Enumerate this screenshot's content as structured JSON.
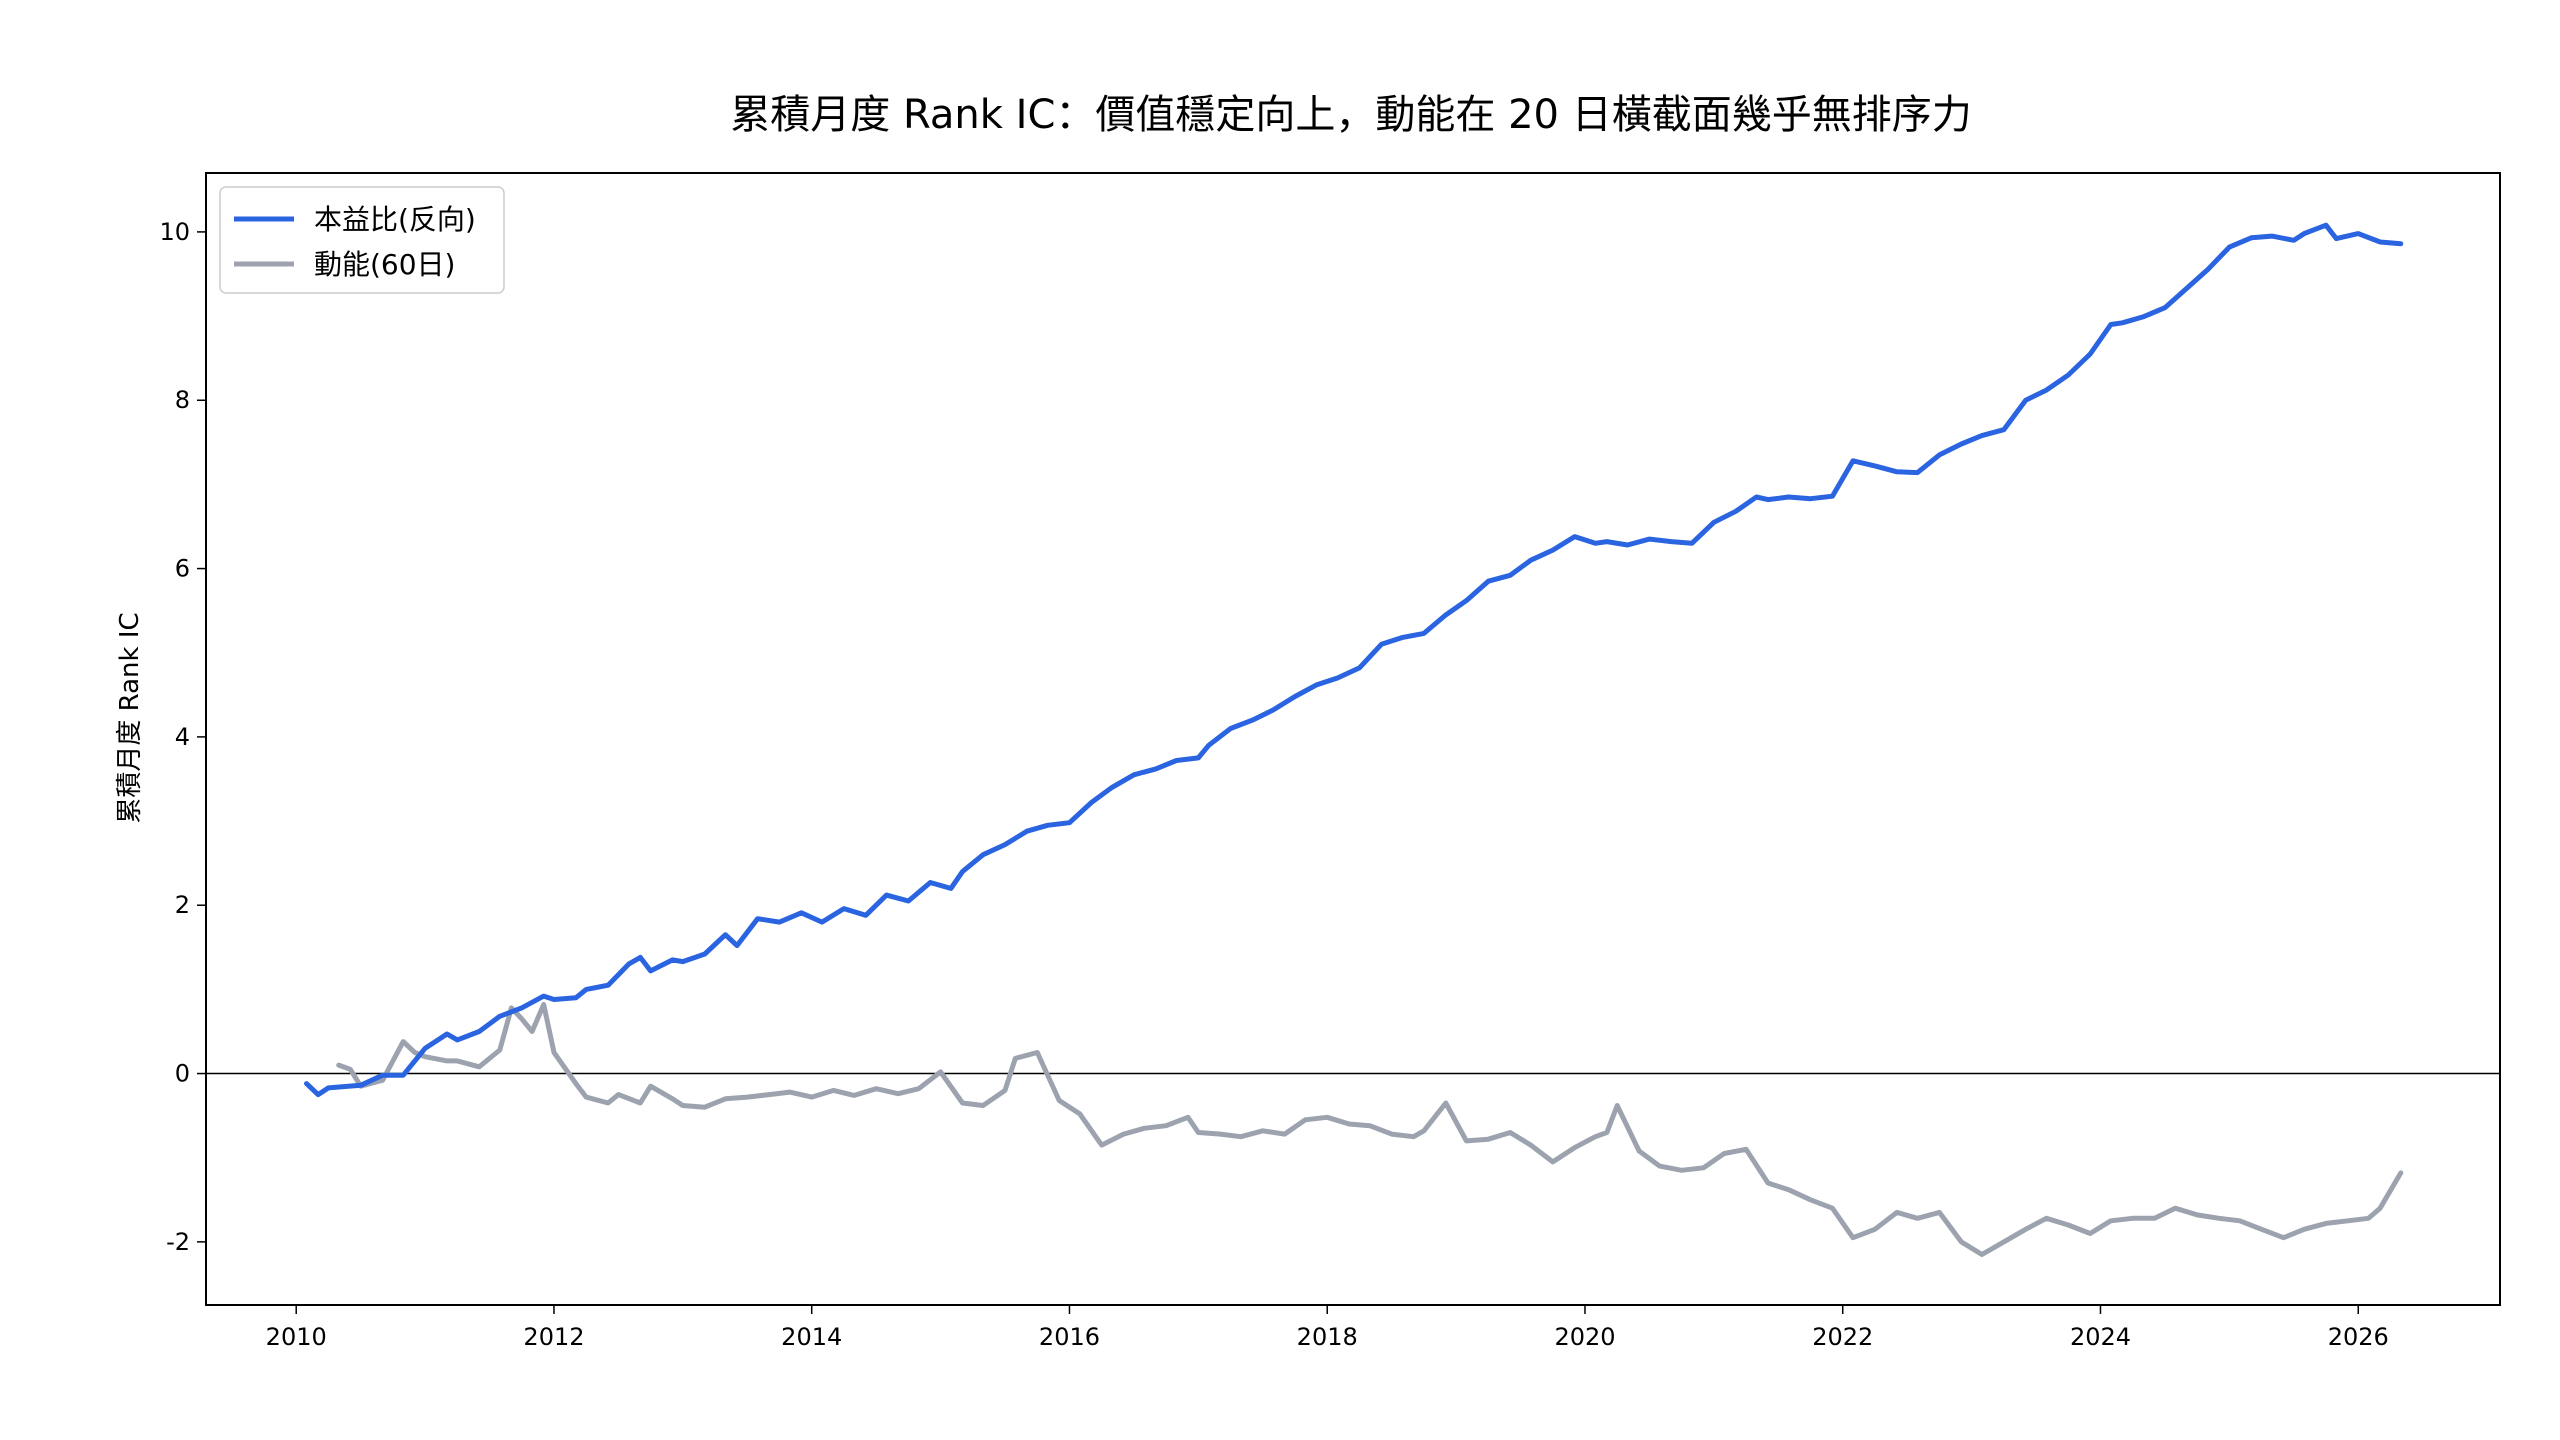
{
  "chart_data": {
    "type": "line",
    "title": "累積月度 Rank IC：價值穩定向上，動能在 20 日橫截面幾乎無排序力",
    "xlabel": "",
    "ylabel": "累積月度 Rank IC",
    "xlim": [
      2009.3,
      2027.1
    ],
    "ylim": [
      -2.75,
      10.7
    ],
    "x_ticks": [
      2010,
      2012,
      2014,
      2016,
      2018,
      2020,
      2022,
      2024,
      2026
    ],
    "x_tick_labels": [
      "2010",
      "2012",
      "2014",
      "2016",
      "2018",
      "2020",
      "2022",
      "2024",
      "2026"
    ],
    "y_ticks": [
      -2,
      0,
      2,
      4,
      6,
      8,
      10
    ],
    "y_tick_labels": [
      "-2",
      "0",
      "2",
      "4",
      "6",
      "8",
      "10"
    ],
    "zero_line": true,
    "grid": false,
    "legend_position": "top-left",
    "series": [
      {
        "name": "本益比(反向)",
        "color": "#2b64e0",
        "x": [
          2010.08,
          2010.17,
          2010.25,
          2010.5,
          2010.67,
          2010.83,
          2011.0,
          2011.17,
          2011.25,
          2011.42,
          2011.58,
          2011.75,
          2011.92,
          2012.0,
          2012.17,
          2012.25,
          2012.42,
          2012.58,
          2012.67,
          2012.75,
          2012.92,
          2013.0,
          2013.17,
          2013.33,
          2013.42,
          2013.58,
          2013.75,
          2013.92,
          2014.08,
          2014.25,
          2014.42,
          2014.58,
          2014.75,
          2014.92,
          2015.08,
          2015.17,
          2015.33,
          2015.5,
          2015.67,
          2015.83,
          2016.0,
          2016.17,
          2016.33,
          2016.5,
          2016.67,
          2016.83,
          2017.0,
          2017.08,
          2017.25,
          2017.42,
          2017.58,
          2017.75,
          2017.92,
          2018.08,
          2018.25,
          2018.42,
          2018.58,
          2018.75,
          2018.92,
          2019.08,
          2019.25,
          2019.42,
          2019.58,
          2019.75,
          2019.92,
          2020.08,
          2020.17,
          2020.33,
          2020.5,
          2020.67,
          2020.83,
          2021.0,
          2021.17,
          2021.33,
          2021.42,
          2021.58,
          2021.75,
          2021.92,
          2022.08,
          2022.25,
          2022.42,
          2022.58,
          2022.75,
          2022.92,
          2023.08,
          2023.25,
          2023.42,
          2023.58,
          2023.75,
          2023.92,
          2024.08,
          2024.17,
          2024.33,
          2024.5,
          2024.67,
          2024.83,
          2025.0,
          2025.17,
          2025.33,
          2025.5,
          2025.58,
          2025.75,
          2025.83,
          2026.0,
          2026.17,
          2026.33
        ],
        "values": [
          -0.12,
          -0.25,
          -0.17,
          -0.14,
          -0.02,
          -0.02,
          0.3,
          0.47,
          0.4,
          0.5,
          0.68,
          0.78,
          0.92,
          0.88,
          0.9,
          1.0,
          1.05,
          1.3,
          1.38,
          1.22,
          1.35,
          1.33,
          1.42,
          1.65,
          1.52,
          1.84,
          1.8,
          1.91,
          1.8,
          1.96,
          1.88,
          2.12,
          2.05,
          2.27,
          2.2,
          2.4,
          2.6,
          2.72,
          2.88,
          2.95,
          2.98,
          3.22,
          3.4,
          3.55,
          3.62,
          3.72,
          3.75,
          3.9,
          4.1,
          4.2,
          4.32,
          4.48,
          4.62,
          4.7,
          4.82,
          5.1,
          5.18,
          5.23,
          5.45,
          5.62,
          5.85,
          5.92,
          6.1,
          6.22,
          6.38,
          6.3,
          6.32,
          6.28,
          6.35,
          6.32,
          6.3,
          6.55,
          6.68,
          6.85,
          6.82,
          6.85,
          6.83,
          6.86,
          7.28,
          7.22,
          7.15,
          7.14,
          7.35,
          7.48,
          7.58,
          7.65,
          8.0,
          8.12,
          8.3,
          8.55,
          8.9,
          8.92,
          8.99,
          9.1,
          9.33,
          9.55,
          9.82,
          9.93,
          9.95,
          9.9,
          9.98,
          10.08,
          9.92,
          9.98,
          9.88,
          9.86
        ]
      },
      {
        "name": "動能(60日)",
        "color": "#9ca3af",
        "x": [
          2010.33,
          2010.42,
          2010.5,
          2010.67,
          2010.83,
          2010.92,
          2011.0,
          2011.17,
          2011.25,
          2011.42,
          2011.58,
          2011.67,
          2011.75,
          2011.83,
          2011.92,
          2012.0,
          2012.17,
          2012.25,
          2012.42,
          2012.5,
          2012.67,
          2012.75,
          2012.92,
          2013.0,
          2013.17,
          2013.33,
          2013.5,
          2013.67,
          2013.83,
          2014.0,
          2014.17,
          2014.33,
          2014.5,
          2014.67,
          2014.83,
          2015.0,
          2015.17,
          2015.33,
          2015.5,
          2015.58,
          2015.75,
          2015.92,
          2016.08,
          2016.25,
          2016.42,
          2016.58,
          2016.75,
          2016.92,
          2017.0,
          2017.17,
          2017.33,
          2017.5,
          2017.67,
          2017.83,
          2018.0,
          2018.17,
          2018.33,
          2018.5,
          2018.67,
          2018.75,
          2018.92,
          2019.08,
          2019.25,
          2019.42,
          2019.58,
          2019.75,
          2019.92,
          2020.08,
          2020.17,
          2020.25,
          2020.42,
          2020.58,
          2020.75,
          2020.92,
          2021.08,
          2021.25,
          2021.42,
          2021.58,
          2021.75,
          2021.92,
          2022.08,
          2022.25,
          2022.42,
          2022.58,
          2022.75,
          2022.92,
          2023.08,
          2023.25,
          2023.42,
          2023.58,
          2023.75,
          2023.92,
          2024.08,
          2024.25,
          2024.42,
          2024.58,
          2024.75,
          2024.92,
          2025.08,
          2025.25,
          2025.42,
          2025.58,
          2025.75,
          2025.92,
          2026.08,
          2026.17,
          2026.33
        ],
        "values": [
          0.1,
          0.05,
          -0.15,
          -0.08,
          0.38,
          0.25,
          0.2,
          0.15,
          0.15,
          0.08,
          0.28,
          0.78,
          0.65,
          0.5,
          0.82,
          0.25,
          -0.12,
          -0.28,
          -0.35,
          -0.25,
          -0.35,
          -0.15,
          -0.3,
          -0.38,
          -0.4,
          -0.3,
          -0.28,
          -0.25,
          -0.22,
          -0.28,
          -0.2,
          -0.26,
          -0.18,
          -0.24,
          -0.18,
          0.02,
          -0.35,
          -0.38,
          -0.2,
          0.18,
          0.25,
          -0.32,
          -0.48,
          -0.85,
          -0.72,
          -0.65,
          -0.62,
          -0.52,
          -0.7,
          -0.72,
          -0.75,
          -0.68,
          -0.72,
          -0.55,
          -0.52,
          -0.6,
          -0.62,
          -0.72,
          -0.75,
          -0.68,
          -0.35,
          -0.8,
          -0.78,
          -0.7,
          -0.85,
          -1.05,
          -0.88,
          -0.75,
          -0.7,
          -0.38,
          -0.92,
          -1.1,
          -1.15,
          -1.12,
          -0.95,
          -0.9,
          -1.3,
          -1.38,
          -1.5,
          -1.6,
          -1.95,
          -1.85,
          -1.65,
          -1.72,
          -1.65,
          -2.0,
          -2.15,
          -2.0,
          -1.85,
          -1.72,
          -1.8,
          -1.9,
          -1.75,
          -1.72,
          -1.72,
          -1.6,
          -1.68,
          -1.72,
          -1.75,
          -1.85,
          -1.95,
          -1.85,
          -1.78,
          -1.75,
          -1.72,
          -1.6,
          -1.18
        ]
      }
    ]
  }
}
